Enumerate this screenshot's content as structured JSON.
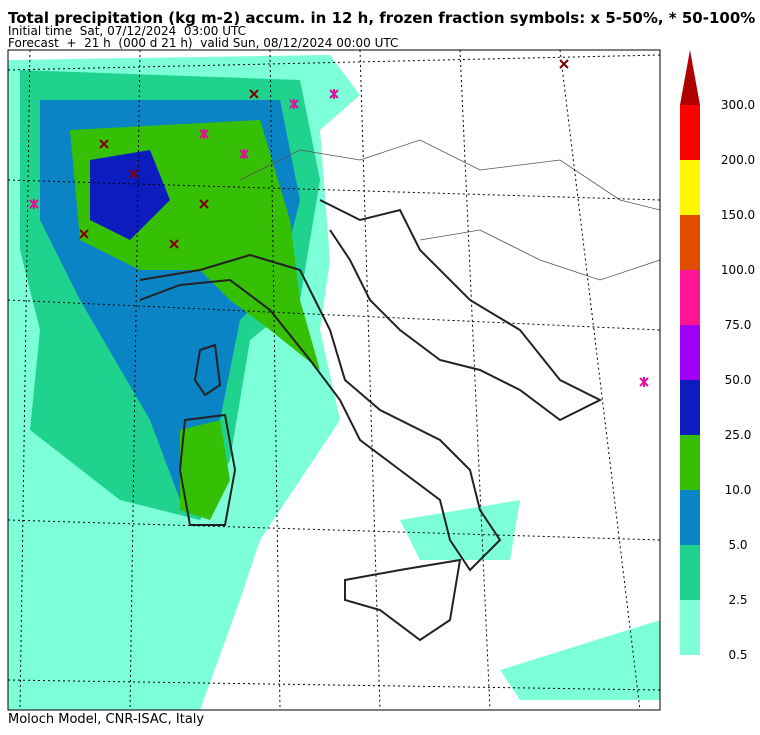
{
  "header": {
    "title": "Total precipitation (kg m-2) accum. in 12 h, frozen fraction symbols: x 5-50%, * 50-100%",
    "initial_time": "Initial time  Sat, 07/12/2024  03:00 UTC",
    "forecast": "Forecast  +  21 h  (000 d 21 h)  valid Sun, 08/12/2024 00:00 UTC"
  },
  "colorbar": {
    "labels": [
      "0.5",
      "2.5",
      "5.0",
      "10.0",
      "25.0",
      "50.0",
      "75.0",
      "100.0",
      "150.0",
      "200.0",
      "300.0"
    ],
    "colors": [
      "#7dffd8",
      "#1fd38f",
      "#0a84c4",
      "#35bf05",
      "#0c1cbf",
      "#a000f5",
      "#ff1493",
      "#e04c00",
      "#fff700",
      "#ff0000"
    ],
    "extend_color": "#b00000"
  },
  "footer": "Moloch Model, CNR-ISAC, Italy"
}
